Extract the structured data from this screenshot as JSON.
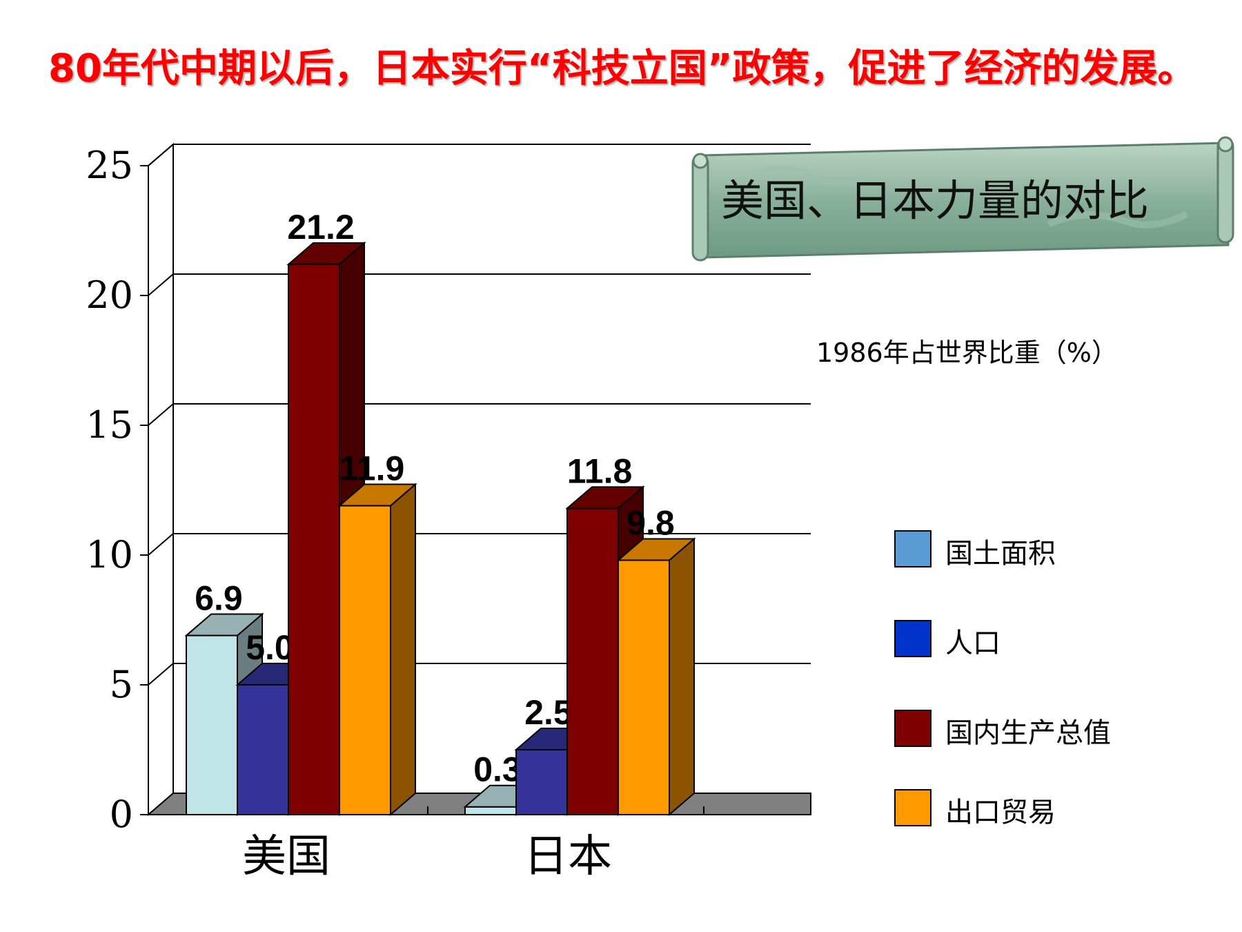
{
  "headline": "80年代中期以后，日本实行“科技立国”政策，促进了经济的发展。",
  "banner_title": "美国、日本力量的对比",
  "chart_data": {
    "type": "bar",
    "title": "美国、日本力量的对比",
    "unit_label": "1986年占世界比重（%）",
    "categories": [
      "美国",
      "日本"
    ],
    "series": [
      {
        "name": "国土面积",
        "values": [
          6.9,
          0.3
        ],
        "color": "#c0e4e8",
        "legend_color": "#5b9bd5"
      },
      {
        "name": "人口",
        "values": [
          5.0,
          2.5
        ],
        "color": "#33339a",
        "legend_color": "#0033cc"
      },
      {
        "name": "国内生产总值",
        "values": [
          21.2,
          11.8
        ],
        "color": "#7f0000",
        "legend_color": "#7f0000"
      },
      {
        "name": "出口贸易",
        "values": [
          11.9,
          9.8
        ],
        "color": "#ff9900",
        "legend_color": "#ff9900"
      }
    ],
    "data_labels": [
      [
        "6.9",
        "5.0",
        "21.2",
        "11.9"
      ],
      [
        "0.3",
        "2.5",
        "11.8",
        "9.8"
      ]
    ],
    "y_ticks": [
      "0",
      "5",
      "10",
      "15",
      "20",
      "25"
    ],
    "ylim": [
      0,
      25
    ],
    "grid": true,
    "legend_position": "right"
  }
}
